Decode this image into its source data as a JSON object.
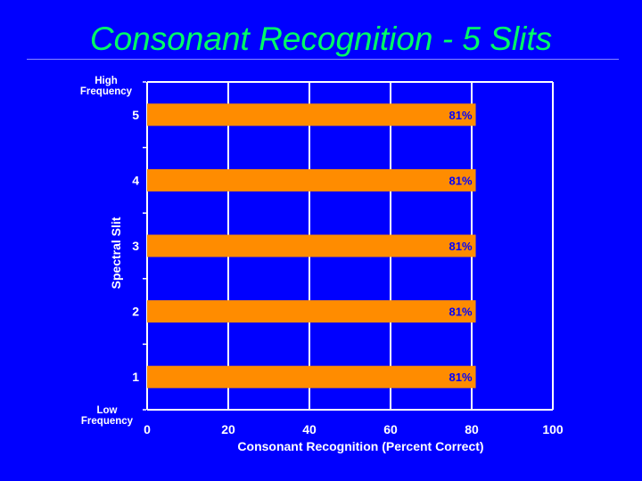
{
  "slide": {
    "title": "Consonant Recognition - 5 Slits"
  },
  "colors": {
    "background": "#0000ff",
    "title": "#00ff66",
    "bar": "#ff8c00",
    "bar_label": "#0000ff",
    "grid": "#ffffff",
    "text": "#ffffff"
  },
  "chart_data": {
    "type": "bar",
    "orientation": "horizontal",
    "categories": [
      "1",
      "2",
      "3",
      "4",
      "5"
    ],
    "values": [
      81,
      81,
      81,
      81,
      81
    ],
    "value_labels": [
      "81%",
      "81%",
      "81%",
      "81%",
      "81%"
    ],
    "xlabel": "Consonant Recognition (Percent Correct)",
    "ylabel": "Spectral Slit",
    "y_top_annotation": [
      "High",
      "Frequency"
    ],
    "y_bottom_annotation": [
      "Low",
      "Frequency"
    ],
    "xlim": [
      0,
      100
    ],
    "xticks": [
      0,
      20,
      40,
      60,
      80,
      100
    ],
    "grid": "vertical"
  }
}
